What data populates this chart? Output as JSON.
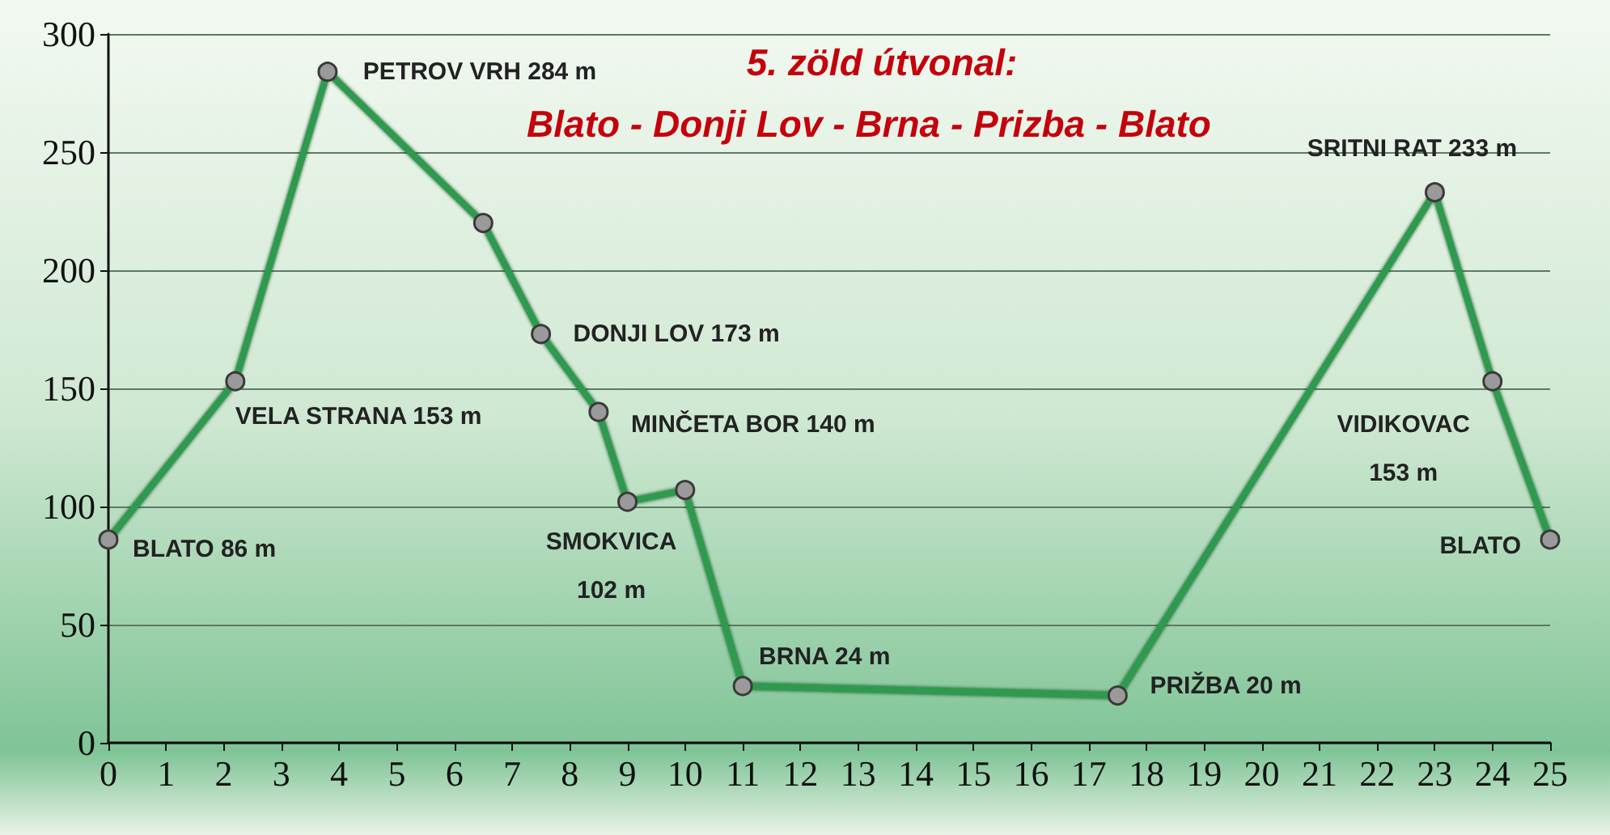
{
  "chart_data": {
    "type": "line",
    "title": "5. zöld útvonal:",
    "subtitle": "Blato - Donji Lov - Brna - Prizba - Blato",
    "x": [
      0,
      2.2,
      3.8,
      6.5,
      7.5,
      8.5,
      9,
      10,
      11,
      17.5,
      23,
      24,
      25
    ],
    "values": [
      86,
      153,
      284,
      220,
      173,
      140,
      102,
      107,
      24,
      20,
      233,
      153,
      86
    ],
    "color": "#2e9a4e",
    "marker": "circle",
    "line_style": "solid",
    "xlim": [
      0,
      25
    ],
    "xticks": [
      0,
      1,
      2,
      3,
      4,
      5,
      6,
      7,
      8,
      9,
      10,
      11,
      12,
      13,
      14,
      15,
      16,
      17,
      18,
      19,
      20,
      21,
      22,
      23,
      24,
      25
    ],
    "ylim": [
      0,
      300
    ],
    "yticks": [
      0,
      50,
      100,
      150,
      200,
      250,
      300
    ],
    "grid": "y",
    "annotations": [
      {
        "text": "BLATO 86 m",
        "x": 0,
        "y": 86
      },
      {
        "text": "VELA STRANA 153 m",
        "x": 2.2,
        "y": 153
      },
      {
        "text": "PETROV VRH 284 m",
        "x": 3.8,
        "y": 284
      },
      {
        "text": "DONJI LOV 173 m",
        "x": 7.5,
        "y": 173
      },
      {
        "text": "MINČETA BOR 140 m",
        "x": 8.5,
        "y": 140
      },
      {
        "text": "SMOKVICA\n102 m",
        "x": 9,
        "y": 102
      },
      {
        "text": "BRNA 24 m",
        "x": 11,
        "y": 24
      },
      {
        "text": "PRIŽBA 20 m",
        "x": 17.5,
        "y": 20
      },
      {
        "text": "SRITNI RAT 233 m",
        "x": 23,
        "y": 233
      },
      {
        "text": "VIDIKOVAC\n153 m",
        "x": 24,
        "y": 153
      },
      {
        "text": "BLATO",
        "x": 25,
        "y": 86
      }
    ]
  }
}
